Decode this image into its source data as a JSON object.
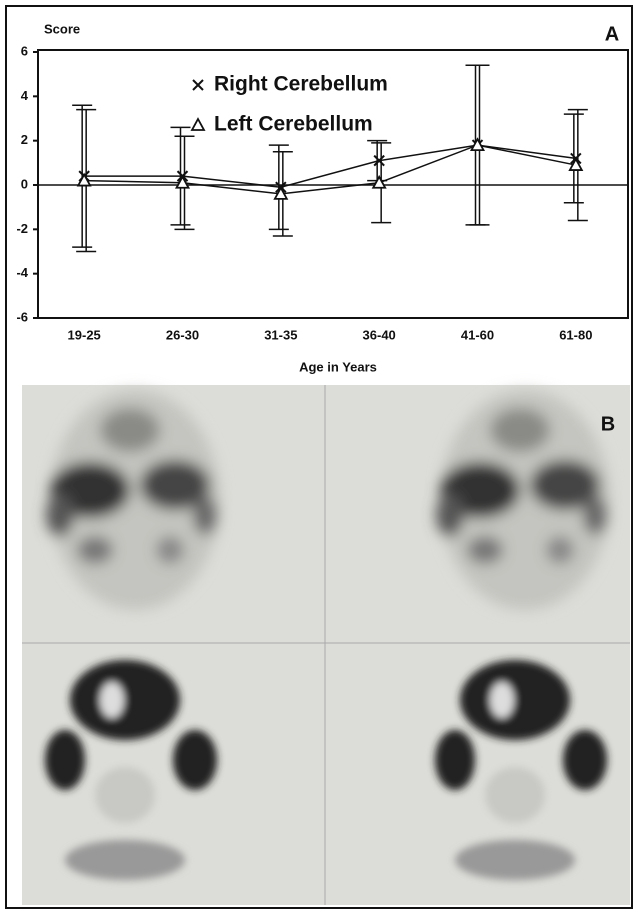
{
  "chart_data": {
    "type": "line",
    "panel_label": "A",
    "y_label": "Score",
    "x_label": "Age in Years",
    "categories": [
      "19-25",
      "26-30",
      "31-35",
      "36-40",
      "41-60",
      "61-80"
    ],
    "series": [
      {
        "name": "Right Cerebellum",
        "marker": "x",
        "color": "#111111",
        "values": [
          0.4,
          0.4,
          -0.1,
          1.1,
          1.8,
          1.2
        ],
        "errors": [
          3.2,
          2.2,
          1.9,
          0.9,
          3.6,
          2.0
        ]
      },
      {
        "name": "Left Cerebellum",
        "marker": "triangle",
        "color": "#111111",
        "values": [
          0.2,
          0.1,
          -0.4,
          0.1,
          1.8,
          0.9
        ],
        "errors": [
          3.2,
          2.1,
          1.9,
          1.8,
          3.6,
          2.5
        ]
      }
    ],
    "ylim": [
      -6,
      6
    ],
    "yticks": [
      -6,
      -4,
      -2,
      0,
      2,
      4,
      6
    ],
    "zero_line": true
  },
  "panel_b": {
    "label": "B"
  }
}
